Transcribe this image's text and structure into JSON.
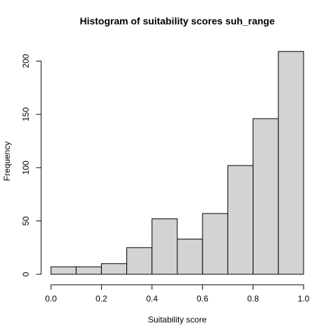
{
  "chart_data": {
    "type": "bar",
    "title": "Histogram of suitability scores suh_range",
    "xlabel": "Suitability score",
    "ylabel": "Frequency",
    "bins": [
      {
        "start": 0.0,
        "end": 0.1,
        "count": 7
      },
      {
        "start": 0.1,
        "end": 0.2,
        "count": 7
      },
      {
        "start": 0.2,
        "end": 0.3,
        "count": 10
      },
      {
        "start": 0.3,
        "end": 0.4,
        "count": 25
      },
      {
        "start": 0.4,
        "end": 0.5,
        "count": 52
      },
      {
        "start": 0.5,
        "end": 0.6,
        "count": 33
      },
      {
        "start": 0.6,
        "end": 0.7,
        "count": 57
      },
      {
        "start": 0.7,
        "end": 0.8,
        "count": 102
      },
      {
        "start": 0.8,
        "end": 0.9,
        "count": 146
      },
      {
        "start": 0.9,
        "end": 1.0,
        "count": 209
      }
    ],
    "xlim": [
      0.0,
      1.0
    ],
    "ylim": [
      0,
      200
    ],
    "xticks": [
      0.0,
      0.2,
      0.4,
      0.6,
      0.8,
      1.0
    ],
    "xtick_labels": [
      "0.0",
      "0.2",
      "0.4",
      "0.6",
      "0.8",
      "1.0"
    ],
    "yticks": [
      0,
      50,
      100,
      150,
      200
    ],
    "ytick_labels": [
      "0",
      "50",
      "100",
      "150",
      "200"
    ],
    "grid": false,
    "bar_color": "#d3d3d3",
    "edge_color": "#000000"
  }
}
